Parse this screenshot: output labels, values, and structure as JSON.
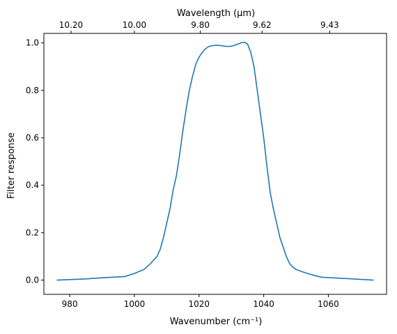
{
  "chart_data": {
    "type": "line",
    "title": "",
    "xlabel": "Wavenumber (cm⁻¹)",
    "ylabel": "Filter response",
    "top_xlabel": "Wavelength (μm)",
    "xlim": [
      972,
      1078
    ],
    "ylim": [
      -0.06,
      1.04
    ],
    "x_ticks": [
      980,
      1000,
      1020,
      1040,
      1060
    ],
    "y_ticks": [
      0.0,
      0.2,
      0.4,
      0.6,
      0.8,
      1.0
    ],
    "top_ticks": [
      {
        "at_wavenumber": 980.4,
        "label": "10.20"
      },
      {
        "at_wavenumber": 1000.0,
        "label": "10.00"
      },
      {
        "at_wavenumber": 1020.4,
        "label": "9.80"
      },
      {
        "at_wavenumber": 1039.5,
        "label": "9.62"
      },
      {
        "at_wavenumber": 1060.4,
        "label": "9.43"
      }
    ],
    "grid": false,
    "series": [
      {
        "color": "#1f77b4",
        "x": [
          976,
          980,
          985,
          990,
          997,
          1000,
          1003,
          1005,
          1007,
          1008,
          1009,
          1010,
          1011,
          1012,
          1013,
          1014,
          1015,
          1016,
          1017,
          1018,
          1019,
          1020,
          1021,
          1022,
          1023,
          1024,
          1025,
          1026,
          1027,
          1028,
          1029,
          1030,
          1031,
          1032,
          1033,
          1034,
          1035,
          1036,
          1037,
          1038,
          1039,
          1040,
          1041,
          1042,
          1043,
          1044,
          1045,
          1046,
          1047,
          1048,
          1049,
          1050,
          1052,
          1055,
          1058,
          1065,
          1074
        ],
        "y": [
          0.0,
          0.002,
          0.005,
          0.01,
          0.015,
          0.028,
          0.045,
          0.07,
          0.1,
          0.13,
          0.18,
          0.24,
          0.3,
          0.38,
          0.44,
          0.53,
          0.63,
          0.72,
          0.8,
          0.86,
          0.91,
          0.94,
          0.96,
          0.975,
          0.985,
          0.988,
          0.99,
          0.99,
          0.988,
          0.986,
          0.985,
          0.986,
          0.99,
          0.995,
          1.0,
          1.003,
          0.995,
          0.96,
          0.9,
          0.8,
          0.7,
          0.6,
          0.48,
          0.37,
          0.3,
          0.24,
          0.18,
          0.14,
          0.1,
          0.07,
          0.055,
          0.045,
          0.035,
          0.022,
          0.012,
          0.007,
          0.0
        ]
      }
    ]
  }
}
